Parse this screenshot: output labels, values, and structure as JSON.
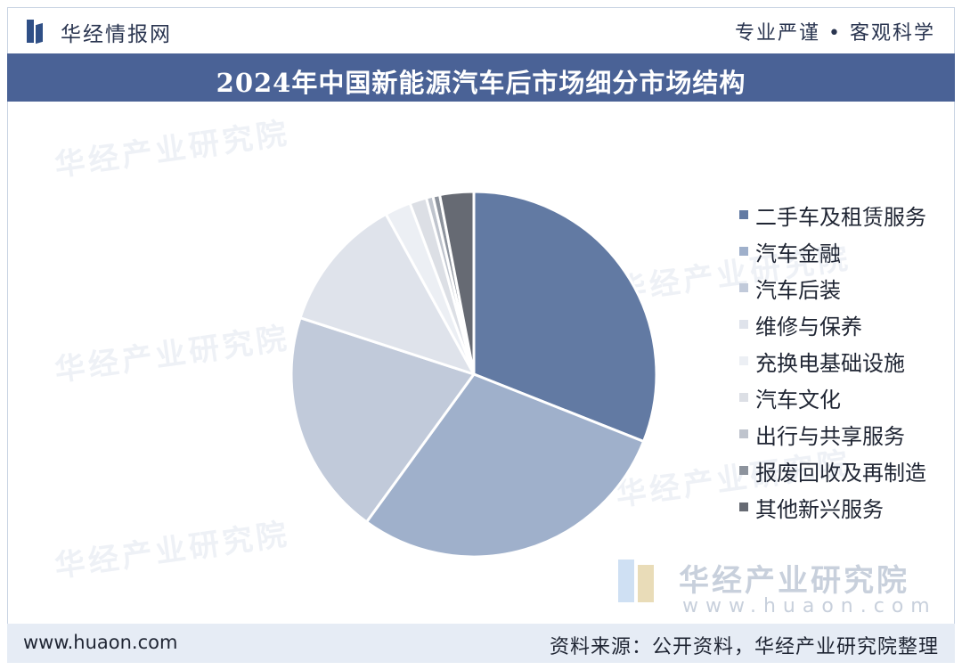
{
  "header": {
    "brand": "华经情报网",
    "slogan": "专业严谨 • 客观科学"
  },
  "title": "2024年中国新能源汽车后市场细分市场结构",
  "watermark": {
    "text": "华经产业研究院",
    "brand_name": "华经产业研究院",
    "brand_url": "www.huaon.com"
  },
  "footer": {
    "url": "www.huaon.com",
    "source": "资料来源：公开资料，华经产业研究院整理"
  },
  "colors": {
    "title_bg": "#4a6296",
    "footer_bg": "#e6ecf5"
  },
  "chart_data": {
    "type": "pie",
    "title": "2024年中国新能源汽车后市场细分市场结构",
    "legend_position": "right",
    "categories": [
      "二手车及租赁服务",
      "汽车金融",
      "汽车后装",
      "维修与保养",
      "充换电基础设施",
      "汽车文化",
      "出行与共享服务",
      "报废回收及再制造",
      "其他新兴服务"
    ],
    "values": [
      31.0,
      29.0,
      20.0,
      12.0,
      2.3,
      1.5,
      0.6,
      0.6,
      3.0
    ],
    "unit": "%",
    "colors": [
      "#627aa3",
      "#9fb0cb",
      "#c1cada",
      "#dfe3eb",
      "#eceff4",
      "#dcdfe5",
      "#bfc4cd",
      "#8d939d",
      "#666a73"
    ]
  }
}
